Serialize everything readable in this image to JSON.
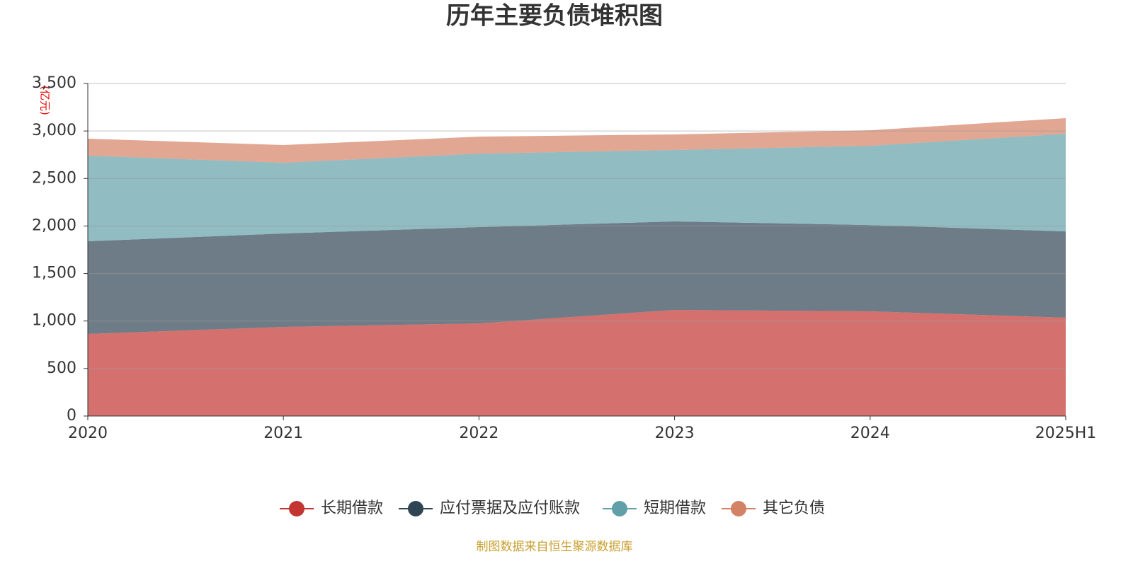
{
  "chart_data": {
    "type": "stacked-area",
    "title": "历年主要负债堆积图",
    "y_unit": "(亿元)",
    "source": "制图数据来自恒生聚源数据库",
    "categories": [
      "2020",
      "2021",
      "2022",
      "2023",
      "2024",
      "2025H1"
    ],
    "series": [
      {
        "name": "长期借款",
        "color": "#c23531",
        "values": [
          864,
          938,
          975,
          1117,
          1102,
          1035
        ]
      },
      {
        "name": "应付票据及应付账款",
        "color": "#2f4554",
        "values": [
          975,
          983,
          1013,
          931,
          908,
          908
        ]
      },
      {
        "name": "短期借款",
        "color": "#61a0a8",
        "values": [
          901,
          745,
          774,
          752,
          834,
          1028
        ]
      },
      {
        "name": "其它负债",
        "color": "#d48265",
        "values": [
          179,
          186,
          179,
          164,
          164,
          164
        ]
      }
    ],
    "ylim": [
      0,
      3500
    ],
    "yticks": [
      0,
      500,
      {
        "value": 1000,
        "label": "1,000"
      },
      {
        "value": 1500,
        "label": "1,500"
      },
      {
        "value": 2000,
        "label": "2,000"
      },
      {
        "value": 2500,
        "label": "2,500"
      },
      {
        "value": 3000,
        "label": "3,000"
      },
      {
        "value": 3500,
        "label": "3,500"
      }
    ],
    "grid": true
  }
}
